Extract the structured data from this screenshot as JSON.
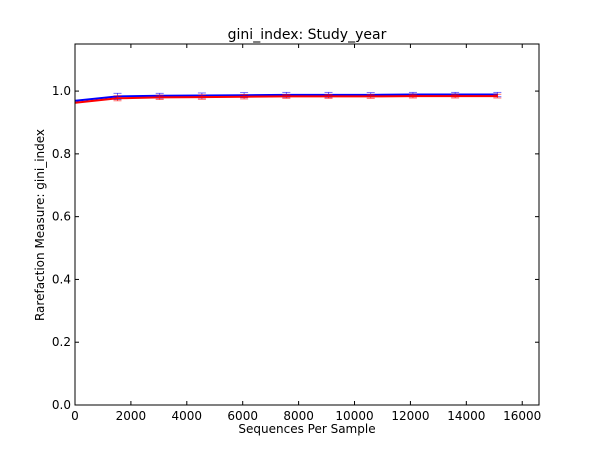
{
  "chart_data": {
    "type": "line",
    "title": "gini_index: Study_year",
    "xlabel": "Sequences Per Sample",
    "ylabel": "Rarefaction Measure: gini_index",
    "xlim": [
      0,
      16600
    ],
    "ylim": [
      0.0,
      1.15
    ],
    "xticks": [
      0,
      2000,
      4000,
      6000,
      8000,
      10000,
      12000,
      14000,
      16000
    ],
    "yticks": [
      0.0,
      0.2,
      0.4,
      0.6,
      0.8,
      1.0
    ],
    "grid": false,
    "legend": "none",
    "x": [
      10,
      1520,
      3030,
      4540,
      6050,
      7560,
      9070,
      10580,
      12090,
      13600,
      15110
    ],
    "series": [
      {
        "color": "#0000ff",
        "values": [
          0.969,
          0.983,
          0.985,
          0.986,
          0.987,
          0.988,
          0.988,
          0.988,
          0.989,
          0.989,
          0.989
        ],
        "errors": [
          0.004,
          0.01,
          0.008,
          0.008,
          0.008,
          0.008,
          0.008,
          0.007,
          0.007,
          0.007,
          0.007
        ]
      },
      {
        "color": "#ff0000",
        "values": [
          0.963,
          0.977,
          0.98,
          0.981,
          0.982,
          0.983,
          0.983,
          0.983,
          0.984,
          0.984,
          0.984
        ],
        "errors": [
          0.004,
          0.008,
          0.007,
          0.007,
          0.007,
          0.006,
          0.006,
          0.006,
          0.006,
          0.006,
          0.006
        ]
      }
    ]
  }
}
